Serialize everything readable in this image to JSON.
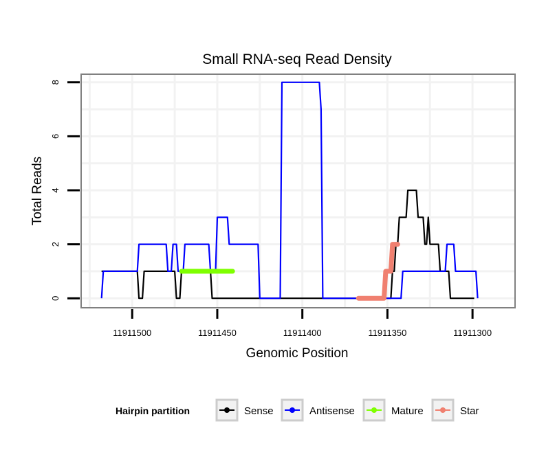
{
  "chart_data": {
    "type": "line",
    "title": "Small RNA-seq Read Density",
    "xlabel": "Genomic Position",
    "ylabel": "Total Reads",
    "x_reversed": true,
    "xlim": [
      11911530,
      11911275
    ],
    "ylim": [
      -0.35,
      8.3
    ],
    "xticks": [
      11911500,
      11911450,
      11911400,
      11911350,
      11911300
    ],
    "xtick_labels": [
      "11911500",
      "11911450",
      "11911400",
      "11911350",
      "11911300"
    ],
    "yticks": [
      0,
      2,
      4,
      6,
      8
    ],
    "ytick_labels": [
      "0",
      "2",
      "4",
      "6",
      "8"
    ],
    "grid": true,
    "legend": {
      "title": "Hairpin partition",
      "position": "bottom",
      "entries": [
        {
          "name": "Sense",
          "color": "#000000"
        },
        {
          "name": "Antisense",
          "color": "#0000ff"
        },
        {
          "name": "Mature",
          "color": "#7fff00"
        },
        {
          "name": "Star",
          "color": "#f08070"
        }
      ]
    },
    "series": [
      {
        "name": "Sense",
        "color": "#000000",
        "points": [
          [
            11911518,
            1
          ],
          [
            11911497,
            1
          ],
          [
            11911496,
            0
          ],
          [
            11911494,
            0
          ],
          [
            11911493,
            1
          ],
          [
            11911475,
            1
          ],
          [
            11911474,
            0
          ],
          [
            11911472,
            0
          ],
          [
            11911471,
            1
          ],
          [
            11911454,
            1
          ],
          [
            11911453,
            0
          ],
          [
            11911348,
            0
          ],
          [
            11911347,
            1
          ],
          [
            11911346,
            1
          ],
          [
            11911345,
            2
          ],
          [
            11911344,
            2
          ],
          [
            11911343,
            3
          ],
          [
            11911339,
            3
          ],
          [
            11911338,
            4
          ],
          [
            11911333,
            4
          ],
          [
            11911332,
            3
          ],
          [
            11911329,
            3
          ],
          [
            11911328,
            2
          ],
          [
            11911327,
            2
          ],
          [
            11911326,
            3
          ],
          [
            11911325,
            2
          ],
          [
            11911320,
            2
          ],
          [
            11911319,
            1
          ],
          [
            11911314,
            1
          ],
          [
            11911313,
            0
          ],
          [
            11911299,
            0
          ]
        ]
      },
      {
        "name": "Antisense",
        "color": "#0000ff",
        "points": [
          [
            11911518,
            0
          ],
          [
            11911517,
            1
          ],
          [
            11911497,
            1
          ],
          [
            11911496,
            2
          ],
          [
            11911480,
            2
          ],
          [
            11911479,
            1
          ],
          [
            11911477,
            1
          ],
          [
            11911476,
            2
          ],
          [
            11911474,
            2
          ],
          [
            11911473,
            1
          ],
          [
            11911470,
            1
          ],
          [
            11911469,
            2
          ],
          [
            11911455,
            2
          ],
          [
            11911454,
            1
          ],
          [
            11911451,
            1
          ],
          [
            11911450,
            3
          ],
          [
            11911444,
            3
          ],
          [
            11911443,
            2
          ],
          [
            11911426,
            2
          ],
          [
            11911425,
            0
          ],
          [
            11911413,
            0
          ],
          [
            11911412,
            8
          ],
          [
            11911390,
            8
          ],
          [
            11911389,
            7
          ],
          [
            11911388,
            0
          ],
          [
            11911342,
            0
          ],
          [
            11911341,
            1
          ],
          [
            11911316,
            1
          ],
          [
            11911315,
            2
          ],
          [
            11911311,
            2
          ],
          [
            11911310,
            1
          ],
          [
            11911298,
            1
          ],
          [
            11911297,
            0
          ]
        ]
      },
      {
        "name": "Mature",
        "color": "#7fff00",
        "points": [
          [
            11911471,
            1
          ],
          [
            11911441,
            1
          ]
        ]
      },
      {
        "name": "Star",
        "color": "#f08070",
        "points": [
          [
            11911367,
            0
          ],
          [
            11911352,
            0
          ],
          [
            11911351,
            1
          ],
          [
            11911348,
            1
          ],
          [
            11911347,
            2
          ],
          [
            11911344,
            2
          ]
        ]
      }
    ]
  }
}
